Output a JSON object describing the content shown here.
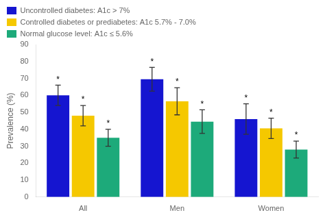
{
  "chart_data": {
    "type": "bar",
    "categories": [
      "All",
      "Men",
      "Women"
    ],
    "series": [
      {
        "name": "Uncontrolled diabetes: A1c > 7%",
        "color": "#1515d0",
        "values": [
          60,
          69.5,
          46
        ],
        "errors": [
          6,
          7,
          9
        ],
        "annotations": [
          "*",
          "*",
          "*"
        ]
      },
      {
        "name": "Controlled diabetes or prediabetes: A1c 5.7% - 7.0%",
        "color": "#f5c800",
        "values": [
          48,
          56.5,
          40.5
        ],
        "errors": [
          6,
          8,
          6
        ],
        "annotations": [
          "*",
          "*",
          "*"
        ]
      },
      {
        "name": "Normal glucose level: A1c ≤ 5.6%",
        "color": "#1daa7a",
        "values": [
          35,
          44.5,
          28
        ],
        "errors": [
          5,
          7,
          5
        ],
        "annotations": [
          "*",
          "*",
          "*"
        ]
      }
    ],
    "ylabel": "Prevalence (%)",
    "ylim": [
      0,
      90
    ],
    "yticks": [
      0,
      10,
      20,
      30,
      40,
      50,
      60,
      70,
      80,
      90
    ],
    "grid": false,
    "legend": "top"
  }
}
